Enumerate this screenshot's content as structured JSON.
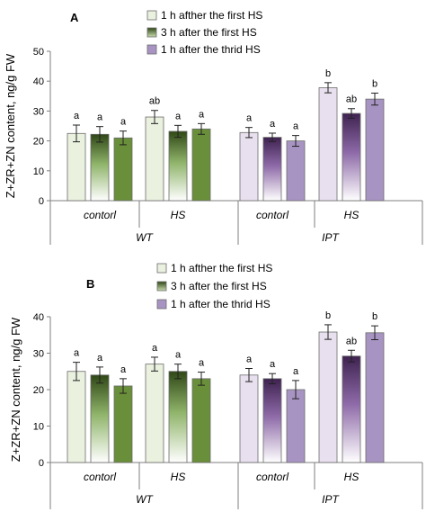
{
  "chart_data": [
    {
      "type": "bar",
      "panel_label": "A",
      "ylabel": "Z+ZR+ZN content, ng/g FW",
      "ylim": [
        0,
        50
      ],
      "yticks": [
        0,
        10,
        20,
        30,
        40,
        50
      ],
      "groups": [
        "WT",
        "IPT"
      ],
      "categories": [
        "contorl",
        "HS",
        "contorl",
        "HS"
      ],
      "series": [
        {
          "name": "1 h afther the first HS",
          "values": [
            22.5,
            28,
            22.8,
            37.8
          ],
          "errors": [
            2.8,
            2.2,
            1.7,
            1.7
          ],
          "letters": [
            "a",
            "ab",
            "a",
            "b"
          ]
        },
        {
          "name": "3 h after the first HS",
          "values": [
            22.2,
            23.2,
            21.2,
            29.2
          ],
          "errors": [
            2.6,
            2.0,
            1.4,
            1.6
          ],
          "letters": [
            "a",
            "a",
            "a",
            "ab"
          ]
        },
        {
          "name": "1 h after the thrid HS",
          "values": [
            21,
            24,
            20,
            34
          ],
          "errors": [
            2.3,
            1.8,
            1.8,
            2.0
          ],
          "letters": [
            "a",
            "a",
            "a",
            "b"
          ]
        }
      ]
    },
    {
      "type": "bar",
      "panel_label": "B",
      "ylabel": "Z+ZR+ZN content, ng/g FW",
      "ylim": [
        0,
        40
      ],
      "yticks": [
        0,
        10,
        20,
        30,
        40
      ],
      "groups": [
        "WT",
        "IPT"
      ],
      "categories": [
        "contorl",
        "HS",
        "contorl",
        "HS"
      ],
      "series": [
        {
          "name": "1 h afther the first HS",
          "values": [
            25,
            27,
            24,
            35.8
          ],
          "errors": [
            2.5,
            1.9,
            1.8,
            2.0
          ],
          "letters": [
            "a",
            "a",
            "a",
            "b"
          ]
        },
        {
          "name": "3 h after the first HS",
          "values": [
            24,
            25,
            23,
            29.2
          ],
          "errors": [
            2.2,
            2.0,
            1.4,
            1.6
          ],
          "letters": [
            "a",
            "a",
            "a",
            "ab"
          ]
        },
        {
          "name": "1 h after the thrid HS",
          "values": [
            21,
            23,
            20,
            35.6
          ],
          "errors": [
            2.0,
            1.8,
            2.5,
            1.9
          ],
          "letters": [
            "a",
            "a",
            "a",
            "b"
          ]
        }
      ]
    }
  ]
}
